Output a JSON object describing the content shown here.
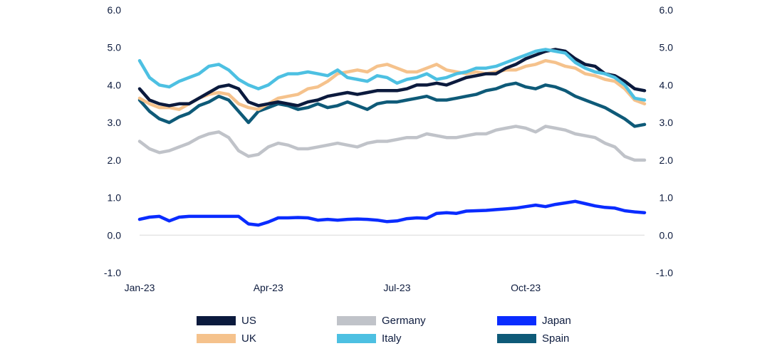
{
  "chart_data": {
    "type": "line",
    "title": "",
    "xlabel": "",
    "ylabel": "",
    "ylim": [
      -1.0,
      6.0
    ],
    "y_ticks": [
      "6.0",
      "5.0",
      "4.0",
      "3.0",
      "2.0",
      "1.0",
      "0.0",
      "-1.0"
    ],
    "y_tick_values": [
      6,
      5,
      4,
      3,
      2,
      1,
      0,
      -1
    ],
    "x_ticks": [
      "Jan-23",
      "Apr-23",
      "Jul-23",
      "Oct-23"
    ],
    "x_tick_positions": [
      0,
      13,
      26,
      39
    ],
    "grid": false,
    "dual_y_axis": true,
    "legend_position": "bottom",
    "x": [
      "W1",
      "W2",
      "W3",
      "W4",
      "W5",
      "W6",
      "W7",
      "W8",
      "W9",
      "W10",
      "W11",
      "W12",
      "W13",
      "W14",
      "W15",
      "W16",
      "W17",
      "W18",
      "W19",
      "W20",
      "W21",
      "W22",
      "W23",
      "W24",
      "W25",
      "W26",
      "W27",
      "W28",
      "W29",
      "W30",
      "W31",
      "W32",
      "W33",
      "W34",
      "W35",
      "W36",
      "W37",
      "W38",
      "W39",
      "W40",
      "W41",
      "W42",
      "W43",
      "W44",
      "W45",
      "W46",
      "W47",
      "W48",
      "W49",
      "W50",
      "W51",
      "W52"
    ],
    "series": [
      {
        "name": "US",
        "color": "#0b1a3d",
        "values": [
          3.9,
          3.6,
          3.5,
          3.45,
          3.5,
          3.5,
          3.65,
          3.8,
          3.95,
          4.0,
          3.9,
          3.55,
          3.45,
          3.5,
          3.55,
          3.5,
          3.45,
          3.55,
          3.6,
          3.7,
          3.75,
          3.8,
          3.75,
          3.8,
          3.85,
          3.85,
          3.85,
          3.9,
          4.0,
          4.0,
          4.05,
          4.0,
          4.1,
          4.2,
          4.25,
          4.3,
          4.3,
          4.45,
          4.55,
          4.7,
          4.8,
          4.9,
          4.95,
          4.9,
          4.7,
          4.55,
          4.5,
          4.3,
          4.25,
          4.1,
          3.9,
          3.85
        ]
      },
      {
        "name": "UK",
        "color": "#f5c28c",
        "values": [
          3.65,
          3.5,
          3.4,
          3.4,
          3.35,
          3.5,
          3.65,
          3.75,
          3.8,
          3.75,
          3.5,
          3.4,
          3.35,
          3.5,
          3.65,
          3.7,
          3.75,
          3.9,
          3.95,
          4.1,
          4.3,
          4.35,
          4.4,
          4.35,
          4.5,
          4.55,
          4.45,
          4.35,
          4.35,
          4.45,
          4.55,
          4.4,
          4.35,
          4.3,
          4.35,
          4.3,
          4.35,
          4.4,
          4.4,
          4.5,
          4.55,
          4.65,
          4.6,
          4.5,
          4.45,
          4.3,
          4.25,
          4.15,
          4.1,
          3.9,
          3.6,
          3.5
        ]
      },
      {
        "name": "Germany",
        "color": "#c0c3c9",
        "values": [
          2.5,
          2.3,
          2.2,
          2.25,
          2.35,
          2.45,
          2.6,
          2.7,
          2.75,
          2.6,
          2.25,
          2.1,
          2.15,
          2.35,
          2.45,
          2.4,
          2.3,
          2.3,
          2.35,
          2.4,
          2.45,
          2.4,
          2.35,
          2.45,
          2.5,
          2.5,
          2.55,
          2.6,
          2.6,
          2.7,
          2.65,
          2.6,
          2.6,
          2.65,
          2.7,
          2.7,
          2.8,
          2.85,
          2.9,
          2.85,
          2.75,
          2.9,
          2.85,
          2.8,
          2.7,
          2.65,
          2.6,
          2.45,
          2.35,
          2.1,
          2.0,
          2.0
        ]
      },
      {
        "name": "Italy",
        "color": "#4dc0e2",
        "values": [
          4.65,
          4.2,
          4.0,
          3.95,
          4.1,
          4.2,
          4.3,
          4.5,
          4.55,
          4.4,
          4.15,
          4.0,
          3.9,
          4.0,
          4.2,
          4.3,
          4.3,
          4.35,
          4.3,
          4.25,
          4.4,
          4.2,
          4.15,
          4.1,
          4.25,
          4.2,
          4.05,
          4.15,
          4.2,
          4.3,
          4.15,
          4.2,
          4.3,
          4.35,
          4.45,
          4.45,
          4.5,
          4.6,
          4.7,
          4.8,
          4.9,
          4.95,
          4.9,
          4.85,
          4.6,
          4.45,
          4.35,
          4.3,
          4.2,
          4.0,
          3.65,
          3.6
        ]
      },
      {
        "name": "Japan",
        "color": "#0a2cff",
        "values": [
          0.42,
          0.48,
          0.5,
          0.38,
          0.48,
          0.5,
          0.5,
          0.5,
          0.5,
          0.5,
          0.5,
          0.3,
          0.27,
          0.35,
          0.46,
          0.46,
          0.47,
          0.46,
          0.4,
          0.42,
          0.4,
          0.42,
          0.43,
          0.42,
          0.4,
          0.36,
          0.38,
          0.44,
          0.46,
          0.45,
          0.58,
          0.6,
          0.58,
          0.64,
          0.65,
          0.66,
          0.68,
          0.7,
          0.72,
          0.76,
          0.8,
          0.76,
          0.82,
          0.86,
          0.9,
          0.84,
          0.78,
          0.74,
          0.72,
          0.65,
          0.62,
          0.6
        ]
      },
      {
        "name": "Spain",
        "color": "#0e5a78",
        "values": [
          3.6,
          3.3,
          3.1,
          3.0,
          3.15,
          3.25,
          3.45,
          3.55,
          3.7,
          3.6,
          3.3,
          3.0,
          3.3,
          3.4,
          3.5,
          3.45,
          3.35,
          3.4,
          3.5,
          3.4,
          3.45,
          3.55,
          3.45,
          3.35,
          3.5,
          3.55,
          3.55,
          3.6,
          3.65,
          3.7,
          3.6,
          3.6,
          3.65,
          3.7,
          3.75,
          3.85,
          3.9,
          4.0,
          4.05,
          3.95,
          3.9,
          4.0,
          3.95,
          3.85,
          3.7,
          3.6,
          3.5,
          3.4,
          3.25,
          3.1,
          2.9,
          2.95
        ]
      }
    ]
  }
}
